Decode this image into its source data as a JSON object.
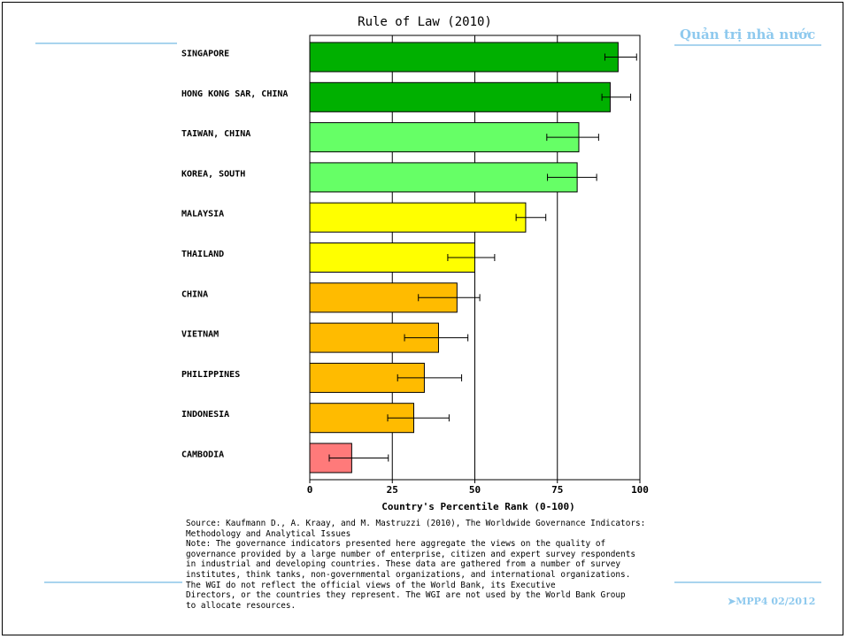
{
  "chart_data": {
    "type": "bar",
    "orientation": "horizontal",
    "title": "Rule of Law (2010)",
    "xlabel": "Country's Percentile Rank (0-100)",
    "xlim": [
      0,
      100
    ],
    "xticks": [
      0,
      25,
      50,
      75,
      100
    ],
    "grid": "vertical at ticks",
    "categories": [
      "SINGAPORE",
      "HONG KONG SAR, CHINA",
      "TAIWAN, CHINA",
      "KOREA, SOUTH",
      "MALAYSIA",
      "THAILAND",
      "CHINA",
      "VIETNAM",
      "PHILIPPINES",
      "INDONESIA",
      "CAMBODIA"
    ],
    "values": [
      93.4,
      91.0,
      81.5,
      81.0,
      65.4,
      50.0,
      44.6,
      39.0,
      34.7,
      31.5,
      12.7
    ],
    "error_low": [
      89.4,
      88.5,
      71.8,
      72.0,
      62.5,
      41.8,
      32.9,
      28.7,
      26.6,
      23.6,
      5.9
    ],
    "error_high": [
      99.0,
      97.2,
      87.5,
      86.9,
      71.5,
      56.0,
      51.5,
      47.9,
      46.0,
      42.2,
      23.8
    ],
    "bar_colors": [
      "#00b000",
      "#00b000",
      "#66ff66",
      "#66ff66",
      "#ffff00",
      "#ffff00",
      "#ffbb00",
      "#ffbb00",
      "#ffbb00",
      "#ffbb00",
      "#ff7a7a"
    ]
  },
  "header": {
    "corner_title": "Quản trị nhà nước"
  },
  "footer": {
    "source_line": "Source: Kaufmann D., A. Kraay, and M. Mastruzzi (2010), The Worldwide Governance Indicators:\nMethodology and Analytical Issues",
    "note_line": "Note: The governance indicators presented here aggregate the views on the quality of\ngovernance provided by a large number of enterprise, citizen and expert survey respondents\nin industrial and developing countries. These data are gathered from a number of survey\ninstitutes, think tanks, non-governmental organizations, and international organizations.\nThe WGI do not reflect the official views of the World Bank, its Executive\nDirectors, or the countries they represent. The WGI are not used by the World Bank Group\nto allocate resources.",
    "slide_code": "➤MPP4 02/2012"
  }
}
